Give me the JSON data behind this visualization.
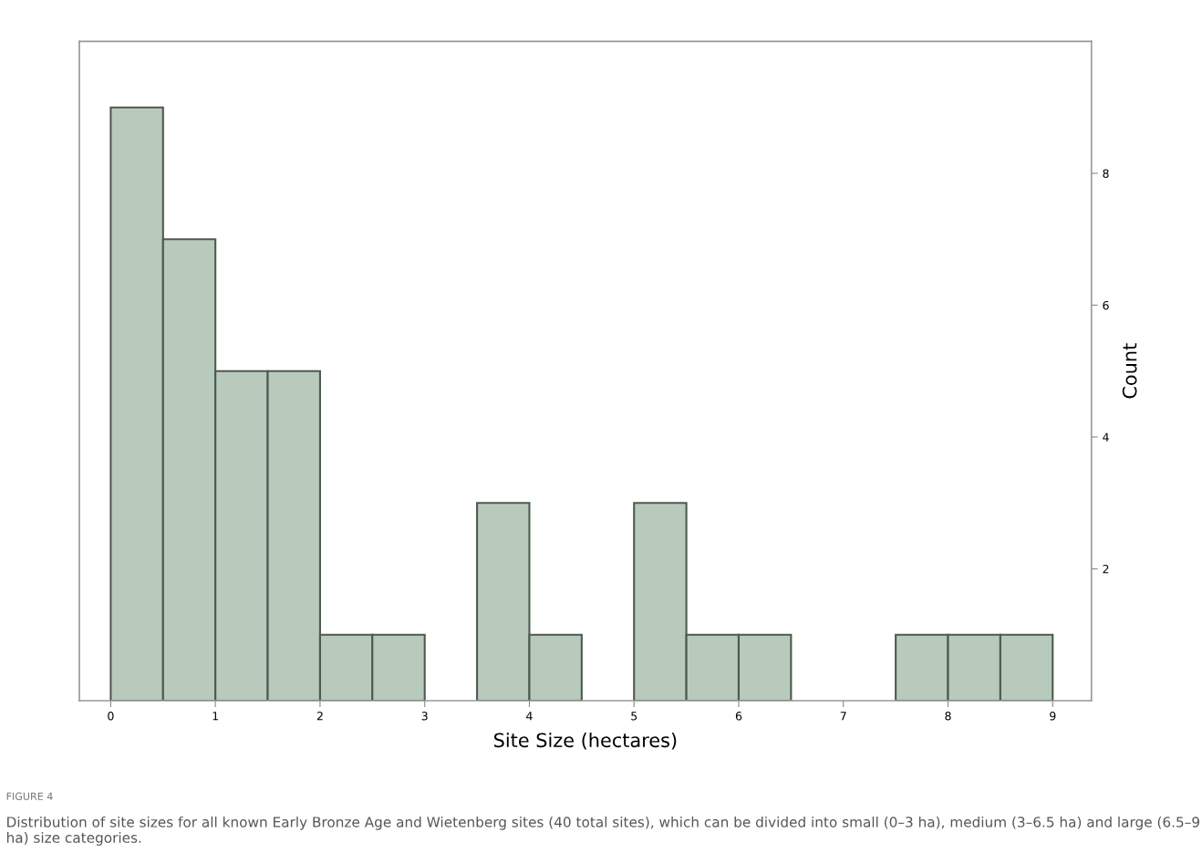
{
  "chart_data": {
    "type": "histogram",
    "xlabel": "Site Size (hectares)",
    "ylabel": "Count",
    "bins": [
      0,
      0.5,
      1,
      1.5,
      2,
      2.5,
      3,
      3.5,
      4,
      4.5,
      5,
      5.5,
      6,
      6.5,
      7,
      7.5,
      8,
      8.5,
      9
    ],
    "values": [
      9,
      7,
      5,
      5,
      1,
      1,
      0,
      3,
      1,
      0,
      3,
      1,
      1,
      0,
      0,
      1,
      1,
      1
    ],
    "color": "#b8cabb",
    "xlim": [
      -0.3,
      9.37
    ],
    "xticks": [
      0,
      1,
      2,
      3,
      4,
      5,
      6,
      7,
      8,
      9
    ],
    "ylim": [
      0,
      10
    ],
    "yticks": [
      2,
      4,
      6,
      8
    ],
    "grid": false,
    "legend": false,
    "annotations": [
      "FIGURE 4",
      "Distribution of site sizes for all known Early Bronze Age and Wietenberg sites (40 total sites), which can be divided into small (0–3 ha), medium (3–6.5 ha) and large (6.5–9 ha) size categories."
    ]
  }
}
